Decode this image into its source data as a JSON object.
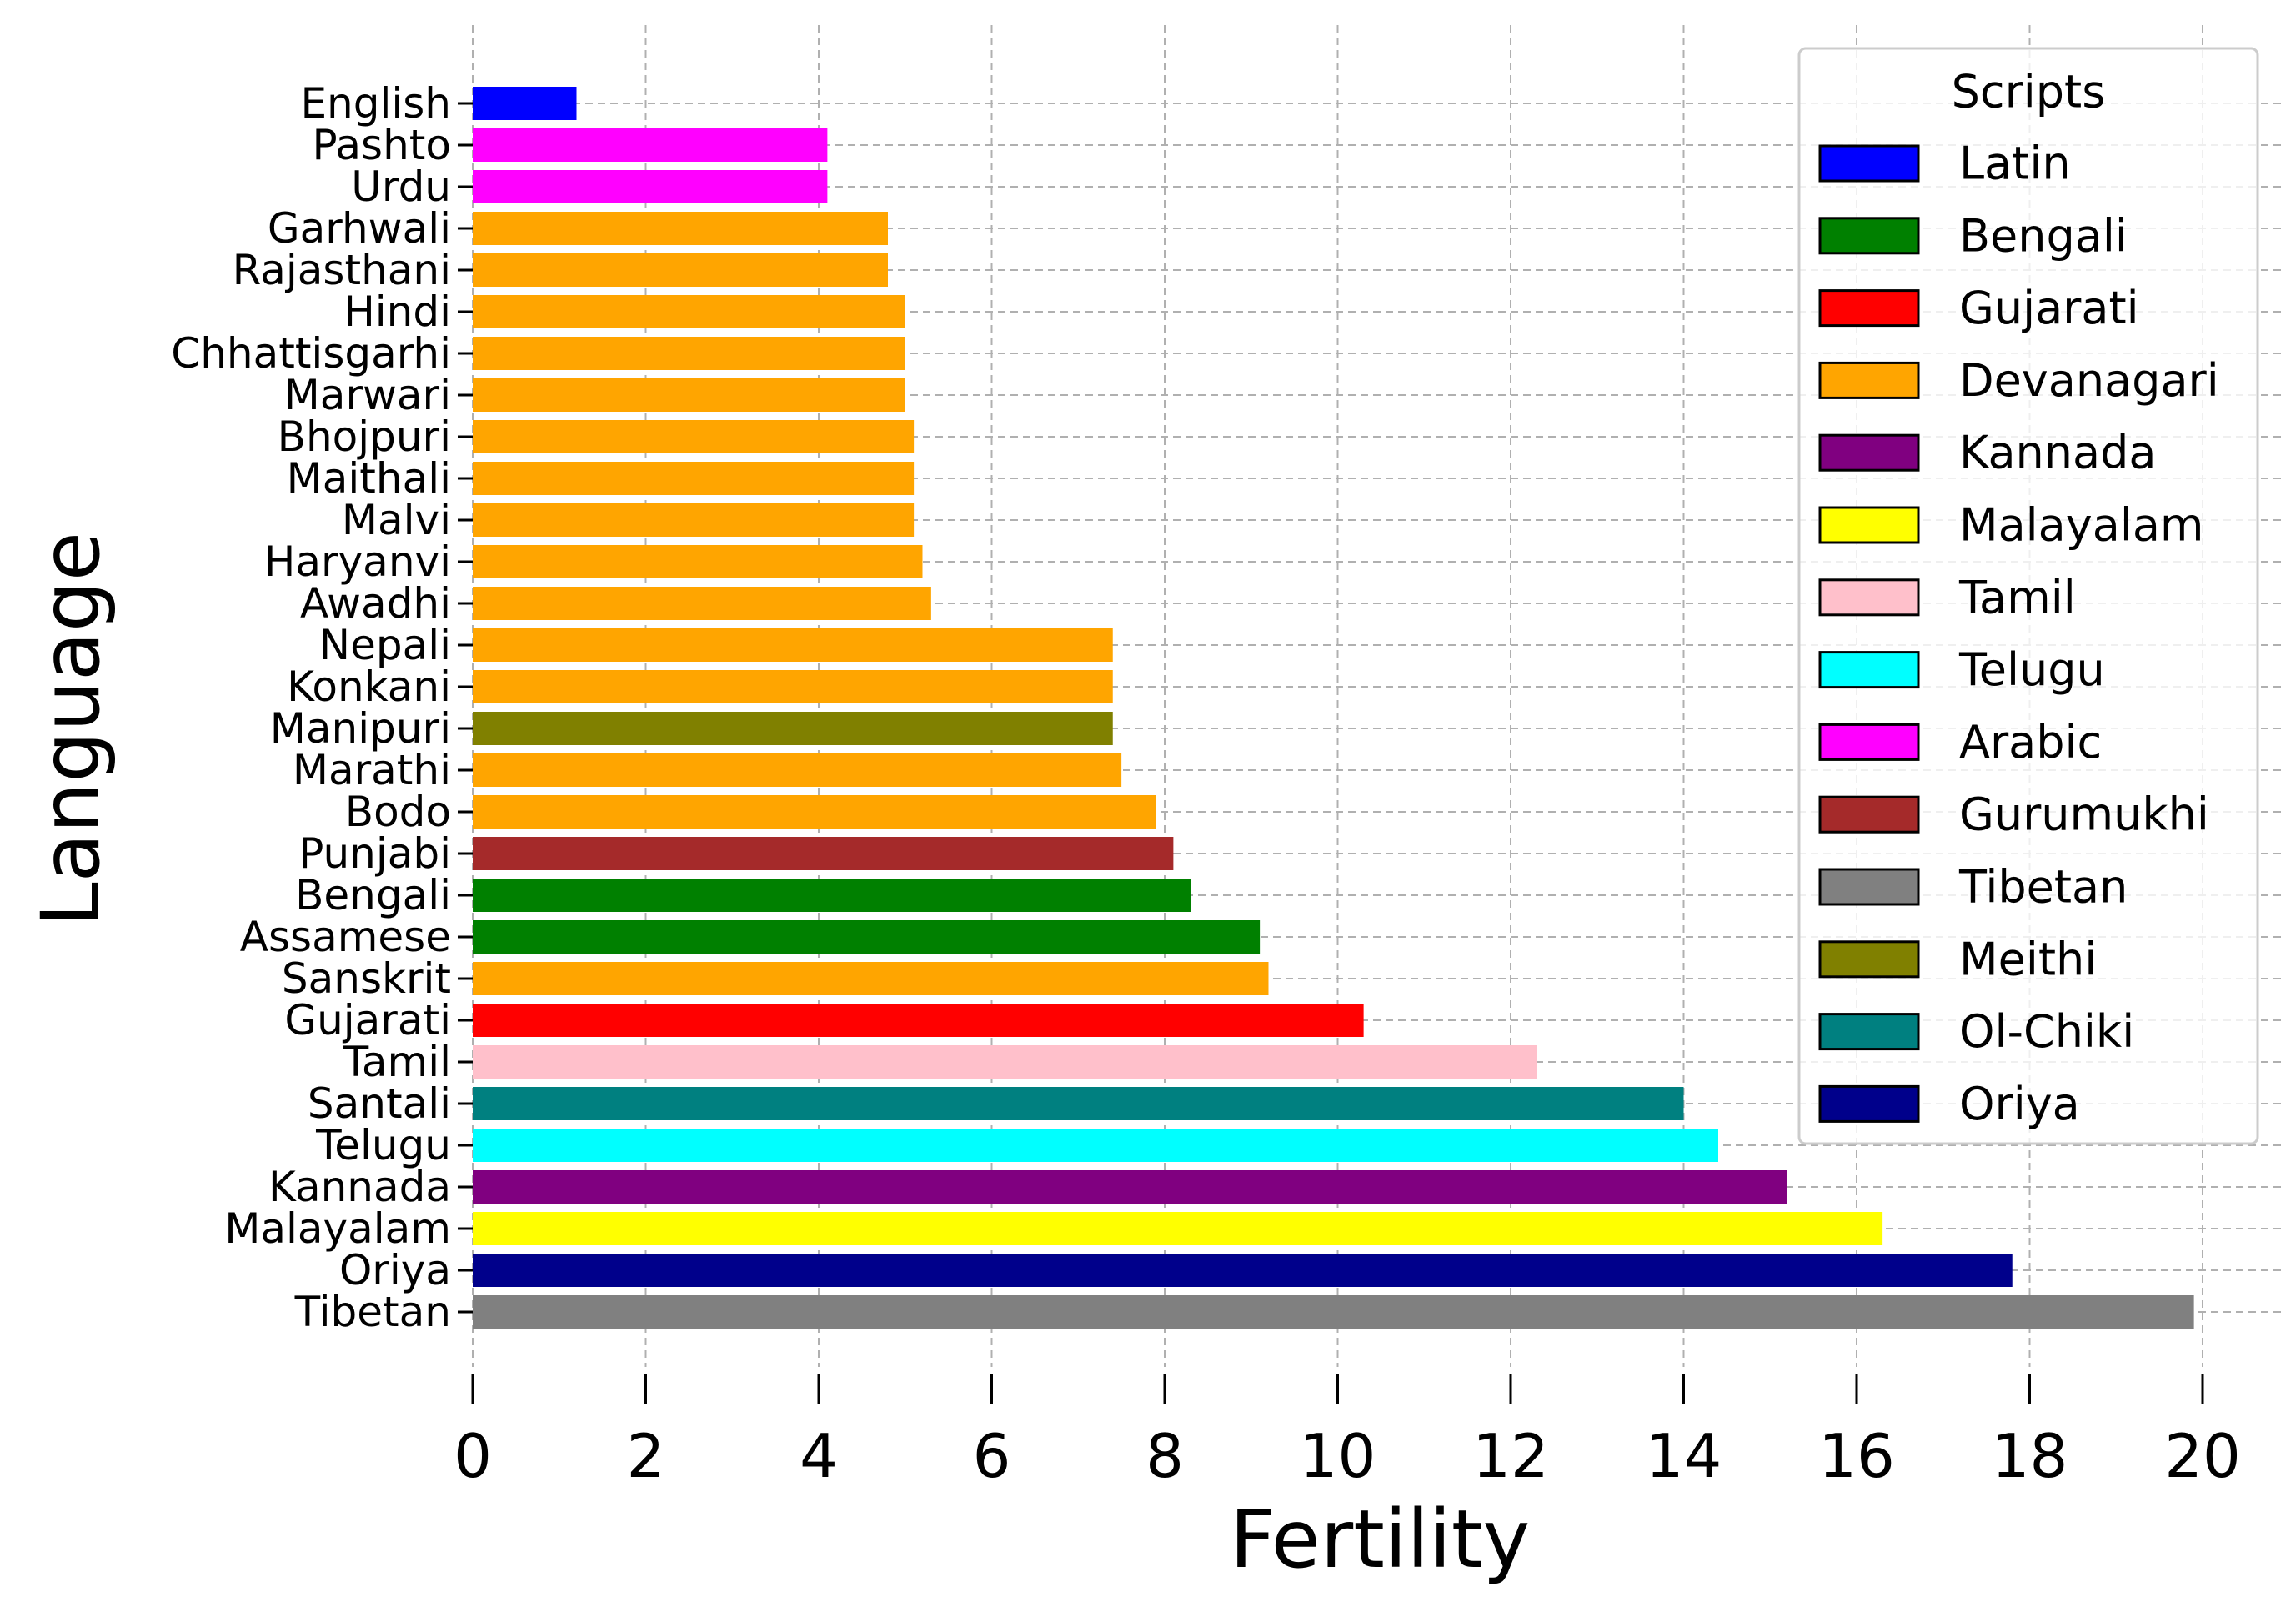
{
  "chart_data": {
    "type": "bar",
    "orientation": "horizontal",
    "xlabel": "Fertility",
    "ylabel": "Language",
    "xlim": [
      0,
      20.5
    ],
    "xticks": [
      0,
      2,
      4,
      6,
      8,
      10,
      12,
      14,
      16,
      18,
      20
    ],
    "grid": true,
    "legend": {
      "title": "Scripts",
      "placement": "top-right",
      "entries": [
        {
          "name": "Latin",
          "color": "#0000ff"
        },
        {
          "name": "Bengali",
          "color": "#008000"
        },
        {
          "name": "Gujarati",
          "color": "#ff0000"
        },
        {
          "name": "Devanagari",
          "color": "#ffa500"
        },
        {
          "name": "Kannada",
          "color": "#800080"
        },
        {
          "name": "Malayalam",
          "color": "#ffff00"
        },
        {
          "name": "Tamil",
          "color": "#ffc0cb"
        },
        {
          "name": "Telugu",
          "color": "#00ffff"
        },
        {
          "name": "Arabic",
          "color": "#ff00ff"
        },
        {
          "name": "Gurumukhi",
          "color": "#a52a2a"
        },
        {
          "name": "Tibetan",
          "color": "#808080"
        },
        {
          "name": "Meithi",
          "color": "#808000"
        },
        {
          "name": "Ol-Chiki",
          "color": "#008080"
        },
        {
          "name": "Oriya",
          "color": "#00008b"
        }
      ]
    },
    "bars": [
      {
        "language": "English",
        "value": 1.2,
        "script": "Latin"
      },
      {
        "language": "Pashto",
        "value": 4.1,
        "script": "Arabic"
      },
      {
        "language": "Urdu",
        "value": 4.1,
        "script": "Arabic"
      },
      {
        "language": "Garhwali",
        "value": 4.8,
        "script": "Devanagari"
      },
      {
        "language": "Rajasthani",
        "value": 4.8,
        "script": "Devanagari"
      },
      {
        "language": "Hindi",
        "value": 5.0,
        "script": "Devanagari"
      },
      {
        "language": "Chhattisgarhi",
        "value": 5.0,
        "script": "Devanagari"
      },
      {
        "language": "Marwari",
        "value": 5.0,
        "script": "Devanagari"
      },
      {
        "language": "Bhojpuri",
        "value": 5.1,
        "script": "Devanagari"
      },
      {
        "language": "Maithali",
        "value": 5.1,
        "script": "Devanagari"
      },
      {
        "language": "Malvi",
        "value": 5.1,
        "script": "Devanagari"
      },
      {
        "language": "Haryanvi",
        "value": 5.2,
        "script": "Devanagari"
      },
      {
        "language": "Awadhi",
        "value": 5.3,
        "script": "Devanagari"
      },
      {
        "language": "Nepali",
        "value": 7.4,
        "script": "Devanagari"
      },
      {
        "language": "Konkani",
        "value": 7.4,
        "script": "Devanagari"
      },
      {
        "language": "Manipuri",
        "value": 7.4,
        "script": "Meithi"
      },
      {
        "language": "Marathi",
        "value": 7.5,
        "script": "Devanagari"
      },
      {
        "language": "Bodo",
        "value": 7.9,
        "script": "Devanagari"
      },
      {
        "language": "Punjabi",
        "value": 8.1,
        "script": "Gurumukhi"
      },
      {
        "language": "Bengali",
        "value": 8.3,
        "script": "Bengali"
      },
      {
        "language": "Assamese",
        "value": 9.1,
        "script": "Bengali"
      },
      {
        "language": "Sanskrit",
        "value": 9.2,
        "script": "Devanagari"
      },
      {
        "language": "Gujarati",
        "value": 10.3,
        "script": "Gujarati"
      },
      {
        "language": "Tamil",
        "value": 12.3,
        "script": "Tamil"
      },
      {
        "language": "Santali",
        "value": 14.0,
        "script": "Ol-Chiki"
      },
      {
        "language": "Telugu",
        "value": 14.4,
        "script": "Telugu"
      },
      {
        "language": "Kannada",
        "value": 15.2,
        "script": "Kannada"
      },
      {
        "language": "Malayalam",
        "value": 16.3,
        "script": "Malayalam"
      },
      {
        "language": "Oriya",
        "value": 17.8,
        "script": "Oriya"
      },
      {
        "language": "Tibetan",
        "value": 19.9,
        "script": "Tibetan"
      }
    ]
  }
}
